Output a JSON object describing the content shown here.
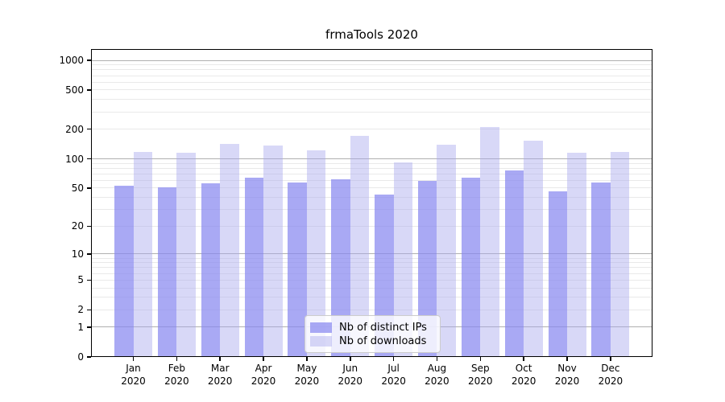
{
  "chart_data": {
    "type": "bar",
    "title": "frmaTools 2020",
    "categories": [
      "Jan",
      "Feb",
      "Mar",
      "Apr",
      "May",
      "Jun",
      "Jul",
      "Aug",
      "Sep",
      "Oct",
      "Nov",
      "Dec"
    ],
    "category_year": "2020",
    "series": [
      {
        "name": "Nb of distinct IPs",
        "color": "#a9a9f4",
        "fill": "rgba(136,136,240,0.72)",
        "values": [
          53,
          51,
          56,
          64,
          57,
          62,
          43,
          59,
          64,
          76,
          46,
          57
        ]
      },
      {
        "name": "Nb of downloads",
        "color": "#d8d8f7",
        "fill": "rgba(168,168,237,0.45)",
        "values": [
          118,
          116,
          143,
          136,
          123,
          172,
          92,
          140,
          210,
          154,
          116,
          117
        ]
      }
    ],
    "y_axis": {
      "scale": "log1p",
      "ticks": [
        0,
        1,
        2,
        5,
        10,
        20,
        50,
        100,
        200,
        500,
        1000
      ],
      "max": 1300
    },
    "grid": {
      "on": true,
      "major_values": [
        1,
        10,
        100,
        1000
      ],
      "major_color": "#b0b0b0",
      "minor_color": "#e9e9e9"
    },
    "legend_position": "bottom-center"
  }
}
